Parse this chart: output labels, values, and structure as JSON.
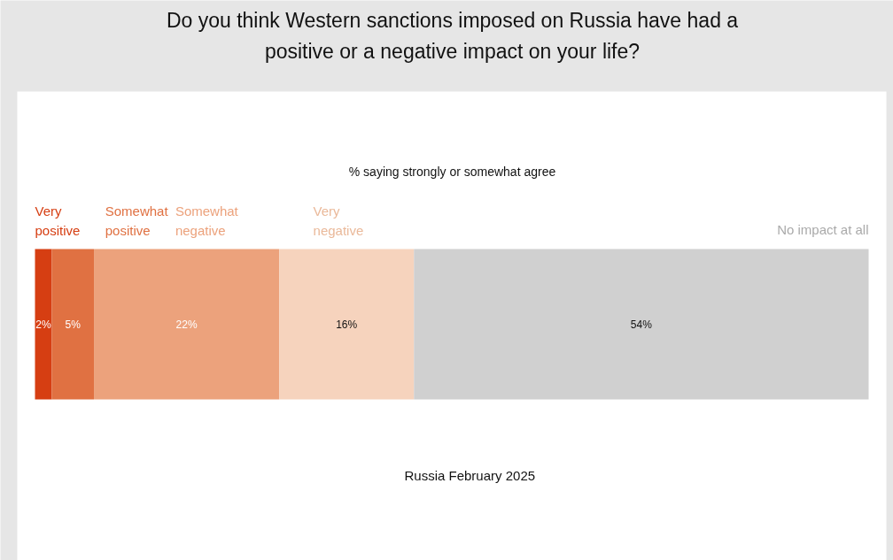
{
  "chart_data": {
    "type": "bar",
    "orientation": "horizontal",
    "stacked": true,
    "title": "Do you think Western sanctions imposed on Russia have had a positive or a negative impact on your life?",
    "subtitle": "% saying strongly or somewhat agree",
    "categories": [
      null
    ],
    "annotations": [
      "Russia February 2025"
    ],
    "series": [
      {
        "name": "Very positive",
        "color": "#d63e12",
        "values": [
          2
        ],
        "value_labels": [
          "2%"
        ]
      },
      {
        "name": "Somewhat positive",
        "color": "#e07142",
        "values": [
          5
        ],
        "value_labels": [
          "5%"
        ]
      },
      {
        "name": "Somewhat negative",
        "color": "#eca27c",
        "values": [
          22
        ],
        "value_labels": [
          "22%"
        ]
      },
      {
        "name": "Very negative",
        "color": "#f6d3bd",
        "values": [
          16
        ],
        "value_labels": [
          "16%"
        ]
      },
      {
        "name": "No impact at all",
        "color": "#d0d0d0",
        "values": [
          54
        ],
        "value_labels": [
          "54%"
        ]
      }
    ]
  }
}
